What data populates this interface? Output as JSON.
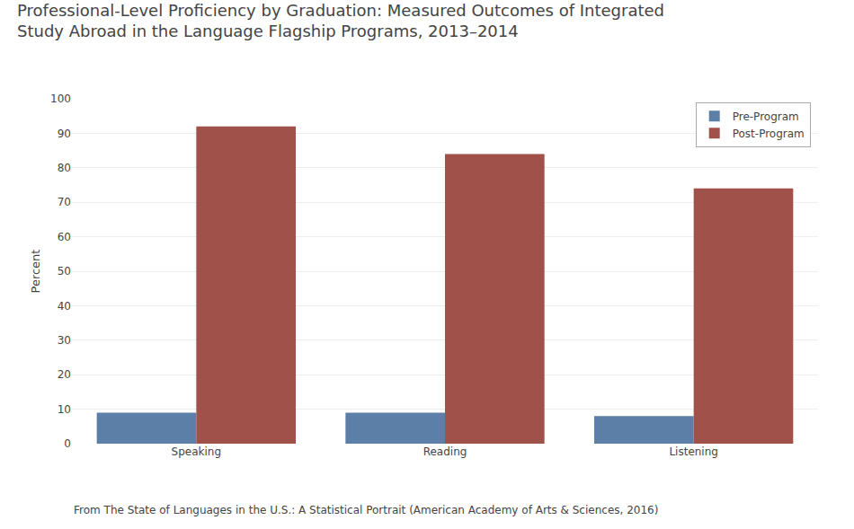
{
  "chart_data": {
    "type": "bar",
    "title": "Professional-Level Proficiency by Graduation: Measured Outcomes of Integrated\nStudy Abroad in the Language Flagship Programs, 2013–2014",
    "categories": [
      "Speaking",
      "Reading",
      "Listening"
    ],
    "series": [
      {
        "name": "Pre-Program",
        "color": "#5b7fa6",
        "values": [
          9,
          9,
          8
        ]
      },
      {
        "name": "Post-Program",
        "color": "#a0524a",
        "values": [
          92,
          84,
          74
        ]
      }
    ],
    "ylabel": "Percent",
    "ylim": [
      0,
      100
    ],
    "yticks": [
      0,
      10,
      20,
      30,
      40,
      50,
      60,
      70,
      80,
      90,
      100
    ],
    "grid": true,
    "legend": "upper right",
    "annotations": [
      "From The State of Languages in the U.S.: A Statistical Portrait (American Academy of Arts & Sciences, 2016)"
    ]
  }
}
